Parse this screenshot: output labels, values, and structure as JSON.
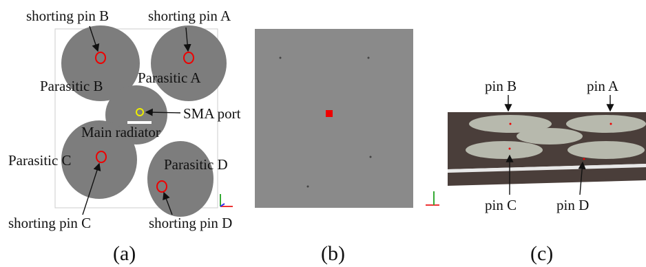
{
  "panel_a": {
    "caption": "(a)",
    "labels": [
      "shorting pin B",
      "shorting pin A",
      "Parasitic B",
      "Parasitic A",
      "SMA port",
      "Main radiator",
      "Parasitic C",
      "Parasitic D",
      "shorting pin C",
      "shorting pin D"
    ]
  },
  "panel_b": {
    "caption": "(b)"
  },
  "panel_c": {
    "caption": "(c)",
    "labels": [
      "pin B",
      "pin A",
      "pin C",
      "pin D"
    ]
  }
}
